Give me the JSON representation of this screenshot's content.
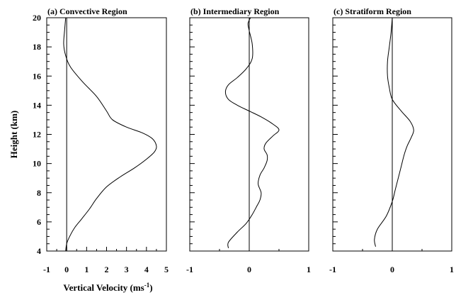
{
  "chart_data": [
    {
      "type": "line",
      "title": "(a) Convective Region",
      "xlim": [
        -1,
        5
      ],
      "ylim": [
        4,
        20
      ],
      "xticks": [
        "-1",
        "0",
        "1",
        "2",
        "3",
        "4",
        "5"
      ],
      "xtick_values": [
        -1,
        0,
        1,
        2,
        3,
        4,
        5
      ],
      "yticks": [
        "4",
        "6",
        "8",
        "10",
        "12",
        "14",
        "16",
        "18",
        "20"
      ],
      "ytick_values": [
        4,
        6,
        8,
        10,
        12,
        14,
        16,
        18,
        20
      ],
      "xlabel": "Vertical Velocity (ms",
      "xlabel_sup": "-1",
      "xlabel_suffix": ")",
      "ylabel": "Height (km)",
      "zero_line": 0,
      "series": [
        {
          "x": [
            -0.05,
            0.0,
            0.15,
            0.4,
            0.75,
            1.15,
            1.5,
            2.0,
            2.7,
            3.4,
            4.0,
            4.4,
            4.5,
            4.3,
            3.8,
            3.0,
            2.3,
            2.0,
            1.5,
            0.8,
            0.2,
            -0.05,
            -0.15,
            -0.1,
            -0.05
          ],
          "y": [
            4.0,
            4.5,
            5.0,
            5.6,
            6.2,
            6.9,
            7.6,
            8.4,
            9.1,
            9.7,
            10.3,
            10.8,
            11.2,
            11.7,
            12.1,
            12.5,
            13.0,
            13.6,
            14.6,
            15.6,
            16.6,
            17.4,
            18.2,
            19.2,
            20.0
          ]
        }
      ]
    },
    {
      "type": "line",
      "title": "(b) Intermediary  Region",
      "xlim": [
        -1,
        1
      ],
      "ylim": [
        4,
        20
      ],
      "xticks": [
        "-1",
        "0",
        "1"
      ],
      "xtick_values": [
        -1,
        0,
        1
      ],
      "yticks": [],
      "zero_line": 0,
      "series": [
        {
          "x": [
            -0.35,
            -0.35,
            -0.2,
            -0.05,
            0.05,
            0.13,
            0.18,
            0.2,
            0.15,
            0.18,
            0.25,
            0.3,
            0.3,
            0.25,
            0.28,
            0.4,
            0.5,
            0.4,
            0.2,
            0.0,
            -0.2,
            -0.35,
            -0.4,
            -0.35,
            -0.2,
            -0.05,
            0.05,
            0.05,
            0.0,
            -0.02,
            0.02
          ],
          "y": [
            4.2,
            4.6,
            5.3,
            5.9,
            6.5,
            7.1,
            7.5,
            8.0,
            8.6,
            9.2,
            9.7,
            10.2,
            10.6,
            11.0,
            11.4,
            11.9,
            12.3,
            12.7,
            13.2,
            13.6,
            14.0,
            14.4,
            14.9,
            15.4,
            15.9,
            16.5,
            17.2,
            18.2,
            19.1,
            19.6,
            20.0
          ]
        }
      ]
    },
    {
      "type": "line",
      "title": "(c) Stratiform Region",
      "xlim": [
        -1,
        1
      ],
      "ylim": [
        4,
        20
      ],
      "xticks": [
        "-1",
        "0",
        "1"
      ],
      "xtick_values": [
        -1,
        0,
        1
      ],
      "yticks": [],
      "zero_line": 0,
      "series": [
        {
          "x": [
            -0.28,
            -0.3,
            -0.25,
            -0.1,
            0.0,
            0.05,
            0.1,
            0.15,
            0.2,
            0.25,
            0.32,
            0.36,
            0.3,
            0.15,
            0.0,
            -0.05,
            -0.08,
            -0.08,
            -0.05,
            -0.02,
            0.0
          ],
          "y": [
            4.3,
            4.8,
            5.5,
            6.4,
            7.4,
            8.2,
            9.0,
            9.8,
            10.6,
            11.2,
            11.8,
            12.3,
            12.9,
            13.6,
            14.4,
            15.2,
            16.0,
            17.0,
            18.0,
            19.0,
            20.0
          ]
        }
      ]
    }
  ]
}
